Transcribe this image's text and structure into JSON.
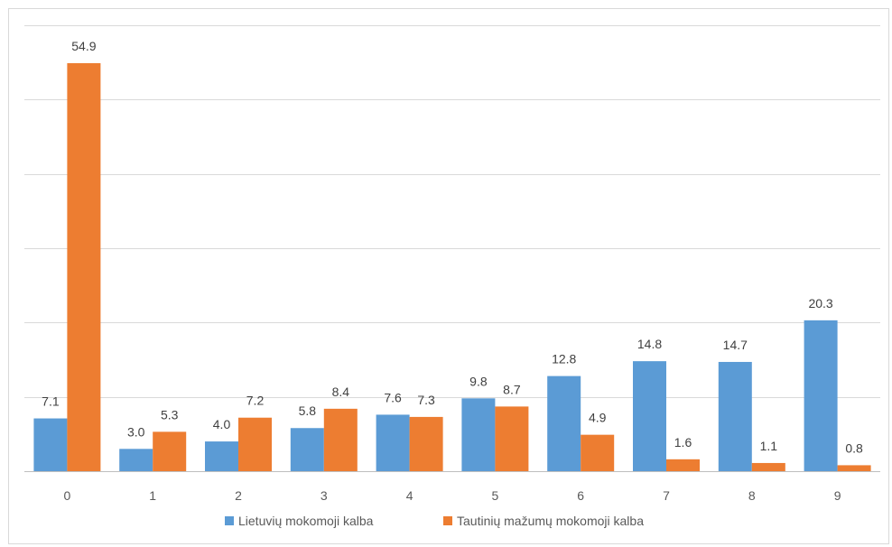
{
  "chart_data": {
    "type": "bar",
    "title": "",
    "xlabel": "",
    "ylabel": "",
    "categories": [
      "0",
      "1",
      "2",
      "3",
      "4",
      "5",
      "6",
      "7",
      "8",
      "9"
    ],
    "series": [
      {
        "name": "Lietuvių mokomoji kalba",
        "color": "#5b9bd5",
        "values": [
          7.1,
          3.0,
          4.0,
          5.8,
          7.6,
          9.8,
          12.8,
          14.8,
          14.7,
          20.3
        ],
        "labels": [
          "7.1",
          "3.0",
          "4.0",
          "5.8",
          "7.6",
          "9.8",
          "12.8",
          "14.8",
          "14.7",
          "20.3"
        ]
      },
      {
        "name": "Tautinių mažumų mokomoji kalba",
        "color": "#ed7d31",
        "values": [
          54.9,
          5.3,
          7.2,
          8.4,
          7.3,
          8.7,
          4.9,
          1.6,
          1.1,
          0.8
        ],
        "labels": [
          "54.9",
          "5.3",
          "7.2",
          "8.4",
          "7.3",
          "8.7",
          "4.9",
          "1.6",
          "1.1",
          "0.8"
        ]
      }
    ],
    "ylim": [
      0,
      60
    ],
    "gridlines": [
      0,
      10,
      20,
      30,
      40,
      50,
      60
    ],
    "grid": true,
    "y_tick_labels_shown": false,
    "legend_position": "bottom"
  }
}
